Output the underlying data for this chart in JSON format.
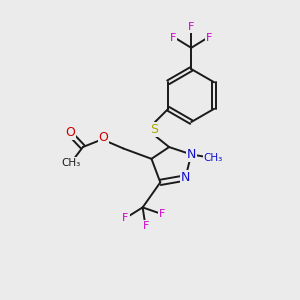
{
  "bg_color": "#ebebeb",
  "bond_color": "#1a1a1a",
  "colors": {
    "N": "#1010cc",
    "O": "#cc0000",
    "S": "#aaaa00",
    "F": "#cc00cc",
    "C": "#1a1a1a"
  },
  "font_size": 8.5,
  "lw": 1.4
}
